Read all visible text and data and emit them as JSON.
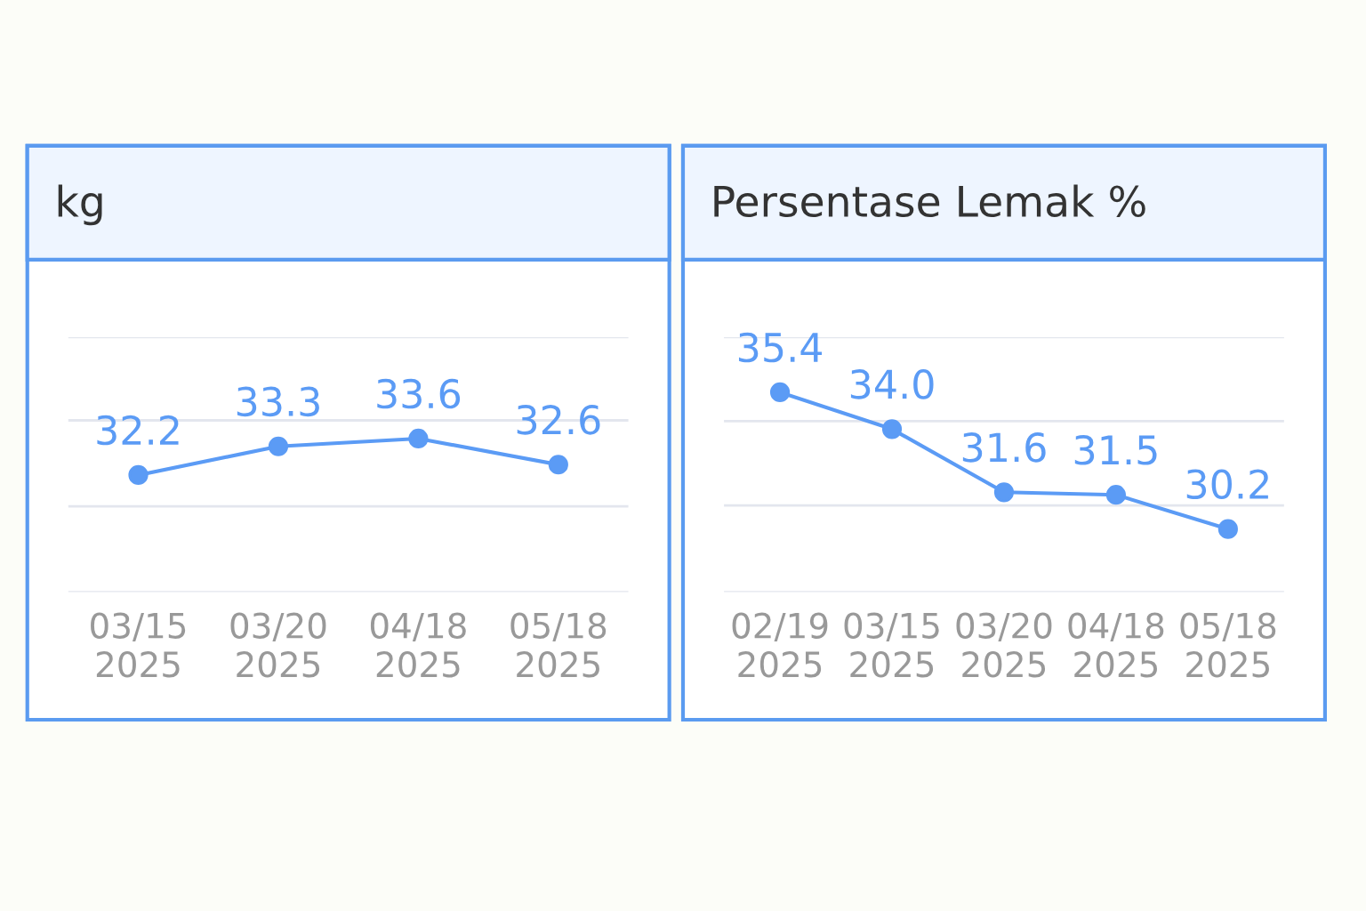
{
  "chart_data": [
    {
      "type": "line",
      "title": "kg",
      "categories": [
        "03/15\n2025",
        "03/20\n2025",
        "04/18\n2025",
        "05/18\n2025"
      ],
      "series": [
        {
          "color": "#5b9bf5",
          "values": [
            32.2,
            33.3,
            33.6,
            32.6
          ],
          "value_labels": [
            "32.2",
            "33.3",
            "33.6",
            "32.6"
          ]
        }
      ],
      "ylim": [
        27.7,
        37.5
      ],
      "yticks": [
        {
          "value": 27.7,
          "label": null
        },
        {
          "value": 31.0,
          "label": null
        },
        {
          "value": 34.3,
          "label": null
        },
        {
          "value": 37.5,
          "label": null
        }
      ],
      "grid": "y",
      "marker": "circle",
      "line_style": "solid",
      "tick_labels": "x"
    },
    {
      "type": "line",
      "title": "Persentase Lemak %",
      "categories": [
        "02/19\n2025",
        "03/15\n2025",
        "03/20\n2025",
        "04/18\n2025",
        "05/18\n2025"
      ],
      "series": [
        {
          "color": "#5b9bf5",
          "values": [
            35.4,
            34.0,
            31.6,
            31.5,
            30.2
          ],
          "value_labels": [
            "35.4",
            "34.0",
            "31.6",
            "31.5",
            "30.2"
          ]
        }
      ],
      "ylim": [
        27.8,
        37.5
      ],
      "yticks": [
        {
          "value": 27.8,
          "label": null
        },
        {
          "value": 31.1,
          "label": null
        },
        {
          "value": 34.3,
          "label": null
        },
        {
          "value": 37.5,
          "label": null
        }
      ],
      "grid": "y",
      "marker": "circle",
      "line_style": "solid",
      "tick_labels": "x"
    }
  ]
}
